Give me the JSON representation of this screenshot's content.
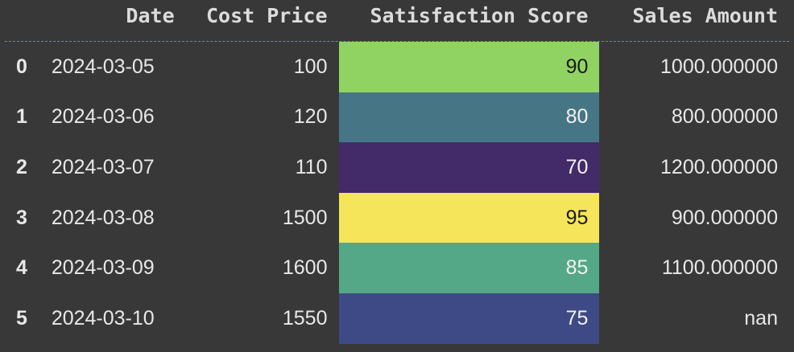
{
  "table": {
    "columns": [
      "",
      "Date",
      "Cost Price",
      "Satisfaction Score",
      "Sales Amount"
    ],
    "rows": [
      {
        "index": "0",
        "date": "2024-03-05",
        "cost": "100",
        "score": "90",
        "sales": "1000.000000",
        "score_bg": "#91d363",
        "score_fg": "#1a1a1a"
      },
      {
        "index": "1",
        "date": "2024-03-06",
        "cost": "120",
        "score": "80",
        "sales": "800.000000",
        "score_bg": "#467685",
        "score_fg": "#f2f2f2"
      },
      {
        "index": "2",
        "date": "2024-03-07",
        "cost": "110",
        "score": "70",
        "sales": "1200.000000",
        "score_bg": "#432a69",
        "score_fg": "#f2f2f2"
      },
      {
        "index": "3",
        "date": "2024-03-08",
        "cost": "1500",
        "score": "95",
        "sales": "900.000000",
        "score_bg": "#f4e55a",
        "score_fg": "#1a1a1a"
      },
      {
        "index": "4",
        "date": "2024-03-09",
        "cost": "1600",
        "score": "85",
        "sales": "1100.000000",
        "score_bg": "#55a887",
        "score_fg": "#f2f2f2"
      },
      {
        "index": "5",
        "date": "2024-03-10",
        "cost": "1550",
        "score": "75",
        "sales": "nan",
        "score_bg": "#3d4a85",
        "score_fg": "#f2f2f2"
      }
    ]
  }
}
